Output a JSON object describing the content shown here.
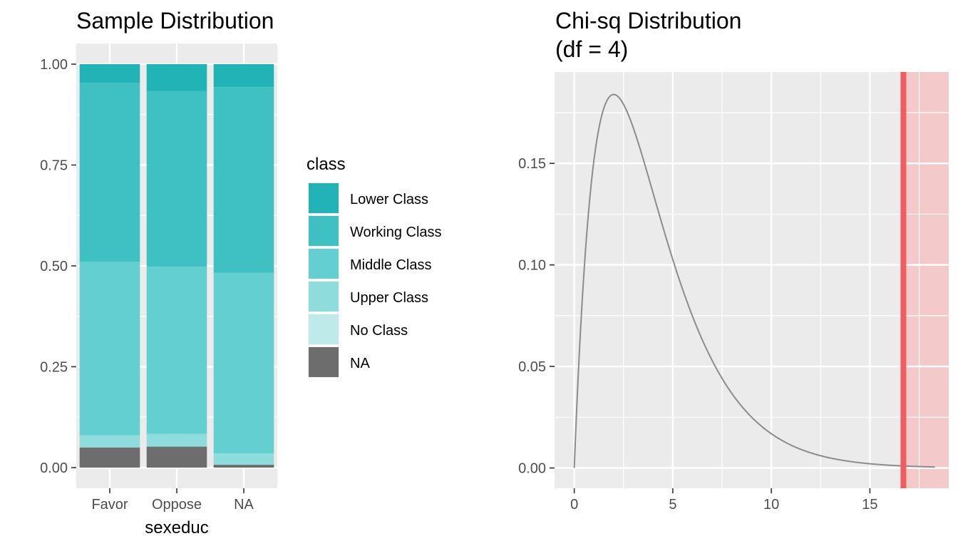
{
  "chart_data": [
    {
      "type": "bar",
      "stacked": true,
      "title": "Sample Distribution",
      "xlabel": "sexeduc",
      "ylabel": "",
      "categories": [
        "Favor",
        "Oppose",
        "NA"
      ],
      "ylim": [
        0,
        1
      ],
      "yticks": [
        "0.00",
        "0.25",
        "0.50",
        "0.75",
        "1.00"
      ],
      "legend": {
        "title": "class",
        "placement": "right"
      },
      "series": [
        {
          "name": "NA",
          "color": "#6d6d6d",
          "values": [
            0.05,
            0.052,
            0.007
          ]
        },
        {
          "name": "No Class",
          "color": "#bfeaea",
          "values": [
            0.0,
            0.0,
            0.0
          ]
        },
        {
          "name": "Upper Class",
          "color": "#8fdcdd",
          "values": [
            0.03,
            0.032,
            0.028
          ]
        },
        {
          "name": "Middle Class",
          "color": "#64cfd0",
          "values": [
            0.43,
            0.414,
            0.448
          ]
        },
        {
          "name": "Working Class",
          "color": "#3fc1c4",
          "values": [
            0.444,
            0.435,
            0.46
          ]
        },
        {
          "name": "Lower Class",
          "color": "#21b3b6",
          "values": [
            0.046,
            0.067,
            0.057
          ]
        }
      ],
      "legend_order": [
        "Lower Class",
        "Working Class",
        "Middle Class",
        "Upper Class",
        "No Class",
        "NA"
      ],
      "grid": true
    },
    {
      "type": "line",
      "title": "Chi-sq Distribution",
      "subtitle": "(df = 4)",
      "df": 4,
      "xlabel": "",
      "ylabel": "",
      "xlim": [
        -1,
        19
      ],
      "ylim": [
        -0.01,
        0.195
      ],
      "xticks": [
        "0",
        "5",
        "10",
        "15"
      ],
      "yticks": [
        "0.00",
        "0.05",
        "0.10",
        "0.15"
      ],
      "x_range": [
        0,
        18.3
      ],
      "line_color": "#8c8c8c",
      "observed_statistic": 16.7,
      "observed_color": "#f15c5c",
      "shade_color": "#f3c9c9",
      "grid": true
    }
  ]
}
